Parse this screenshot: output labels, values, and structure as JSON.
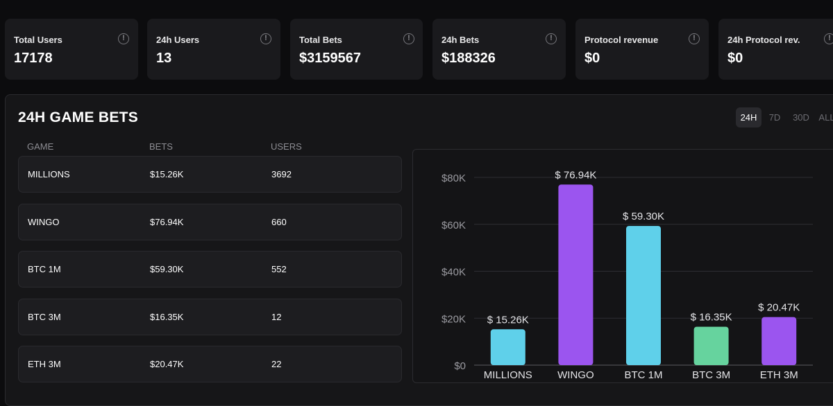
{
  "stats": [
    {
      "label": "Total Users",
      "value": "17178"
    },
    {
      "label": "24h Users",
      "value": "13"
    },
    {
      "label": "Total Bets",
      "value": "$3159567"
    },
    {
      "label": "24h Bets",
      "value": "$188326"
    },
    {
      "label": "Protocol revenue",
      "value": "$0"
    },
    {
      "label": "24h Protocol rev.",
      "value": "$0"
    }
  ],
  "info_icon_glyph": "!",
  "panel": {
    "title": "24H GAME BETS",
    "ranges": [
      {
        "label": "24H",
        "active": true
      },
      {
        "label": "7D",
        "active": false
      },
      {
        "label": "30D",
        "active": false
      },
      {
        "label": "ALL",
        "active": false
      }
    ]
  },
  "table": {
    "headers": [
      "GAME",
      "BETS",
      "USERS"
    ],
    "rows": [
      {
        "game": "MILLIONS",
        "bets": "$15.26K",
        "users": "3692"
      },
      {
        "game": "WINGO",
        "bets": "$76.94K",
        "users": "660"
      },
      {
        "game": "BTC 1M",
        "bets": "$59.30K",
        "users": "552"
      },
      {
        "game": "BTC 3M",
        "bets": "$16.35K",
        "users": "12"
      },
      {
        "game": "ETH 3M",
        "bets": "$20.47K",
        "users": "22"
      }
    ]
  },
  "chart_data": {
    "type": "bar",
    "categories": [
      "MILLIONS",
      "WINGO",
      "BTC 1M",
      "BTC 3M",
      "ETH 3M"
    ],
    "values": [
      15.26,
      76.94,
      59.3,
      16.35,
      20.47
    ],
    "data_labels": [
      "$ 15.26K",
      "$ 76.94K",
      "$ 59.30K",
      "$ 16.35K",
      "$ 20.47K"
    ],
    "colors": [
      "#5fd0ea",
      "#9b55ef",
      "#5fd0ea",
      "#66d39e",
      "#9b55ef"
    ],
    "ylim": [
      0,
      80
    ],
    "yticks": [
      0,
      20,
      40,
      60,
      80
    ],
    "ytick_labels": [
      "$0",
      "$20K",
      "$40K",
      "$60K",
      "$80K"
    ],
    "grid": true,
    "title": "",
    "xlabel": "",
    "ylabel": ""
  }
}
